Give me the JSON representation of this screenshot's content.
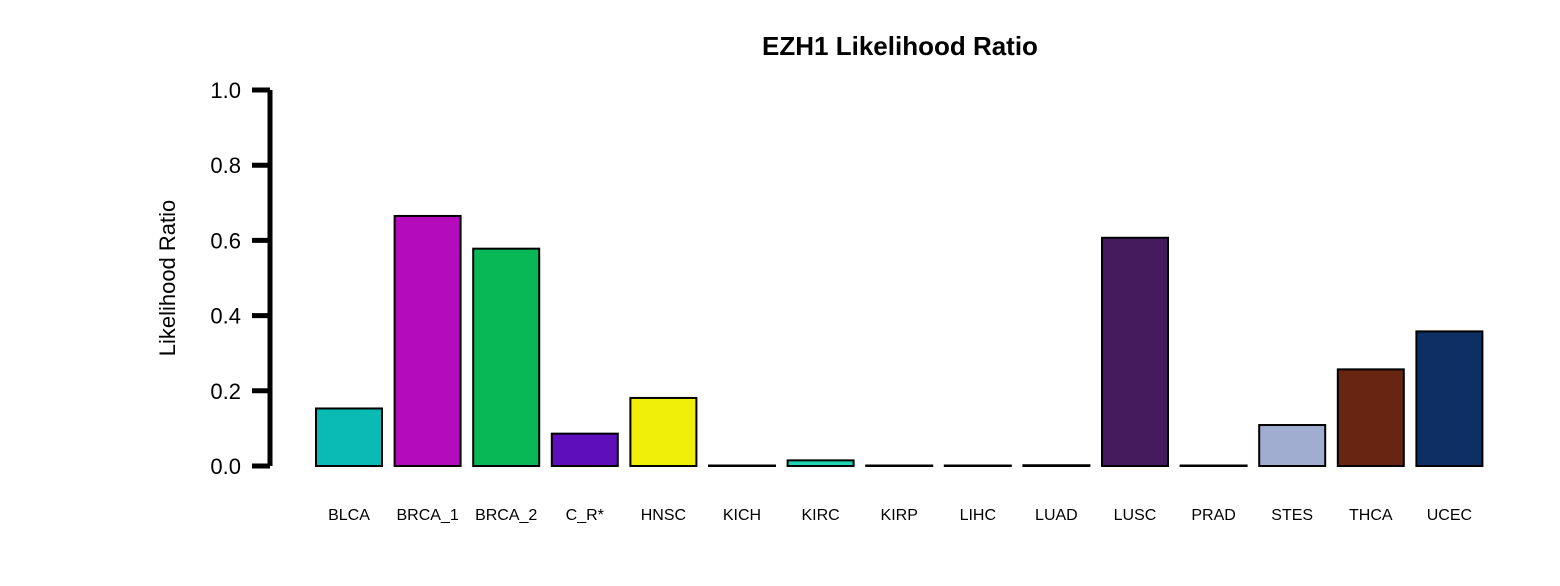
{
  "chart_data": {
    "type": "bar",
    "title": "EZH1 Likelihood Ratio",
    "xlabel": "",
    "ylabel": "Likelihood Ratio",
    "ylim": [
      0,
      1.0
    ],
    "yticks": [
      "0.0",
      "0.2",
      "0.4",
      "0.6",
      "0.8",
      "1.0"
    ],
    "grid": false,
    "legend": "none",
    "categories": [
      "BLCA",
      "BRCA_1",
      "BRCA_2",
      "C_R*",
      "HNSC",
      "KICH",
      "KIRC",
      "KIRP",
      "LIHC",
      "LUAD",
      "LUSC",
      "PRAD",
      "STES",
      "THCA",
      "UCEC"
    ],
    "values": [
      0.153,
      0.665,
      0.578,
      0.086,
      0.181,
      0.0,
      0.015,
      0.0,
      0.0,
      0.002,
      0.607,
      0.0,
      0.109,
      0.257,
      0.358
    ],
    "colors": [
      "#0ABAB5",
      "#B40BBC",
      "#08B857",
      "#5F0EBC",
      "#EFEF0A",
      "#0ABAB5",
      "#1FD4B0",
      "#0ABAB5",
      "#0ABAB5",
      "#0ABAB5",
      "#461B5E",
      "#0ABAB5",
      "#A0ACD0",
      "#672512",
      "#0D2F64"
    ]
  }
}
